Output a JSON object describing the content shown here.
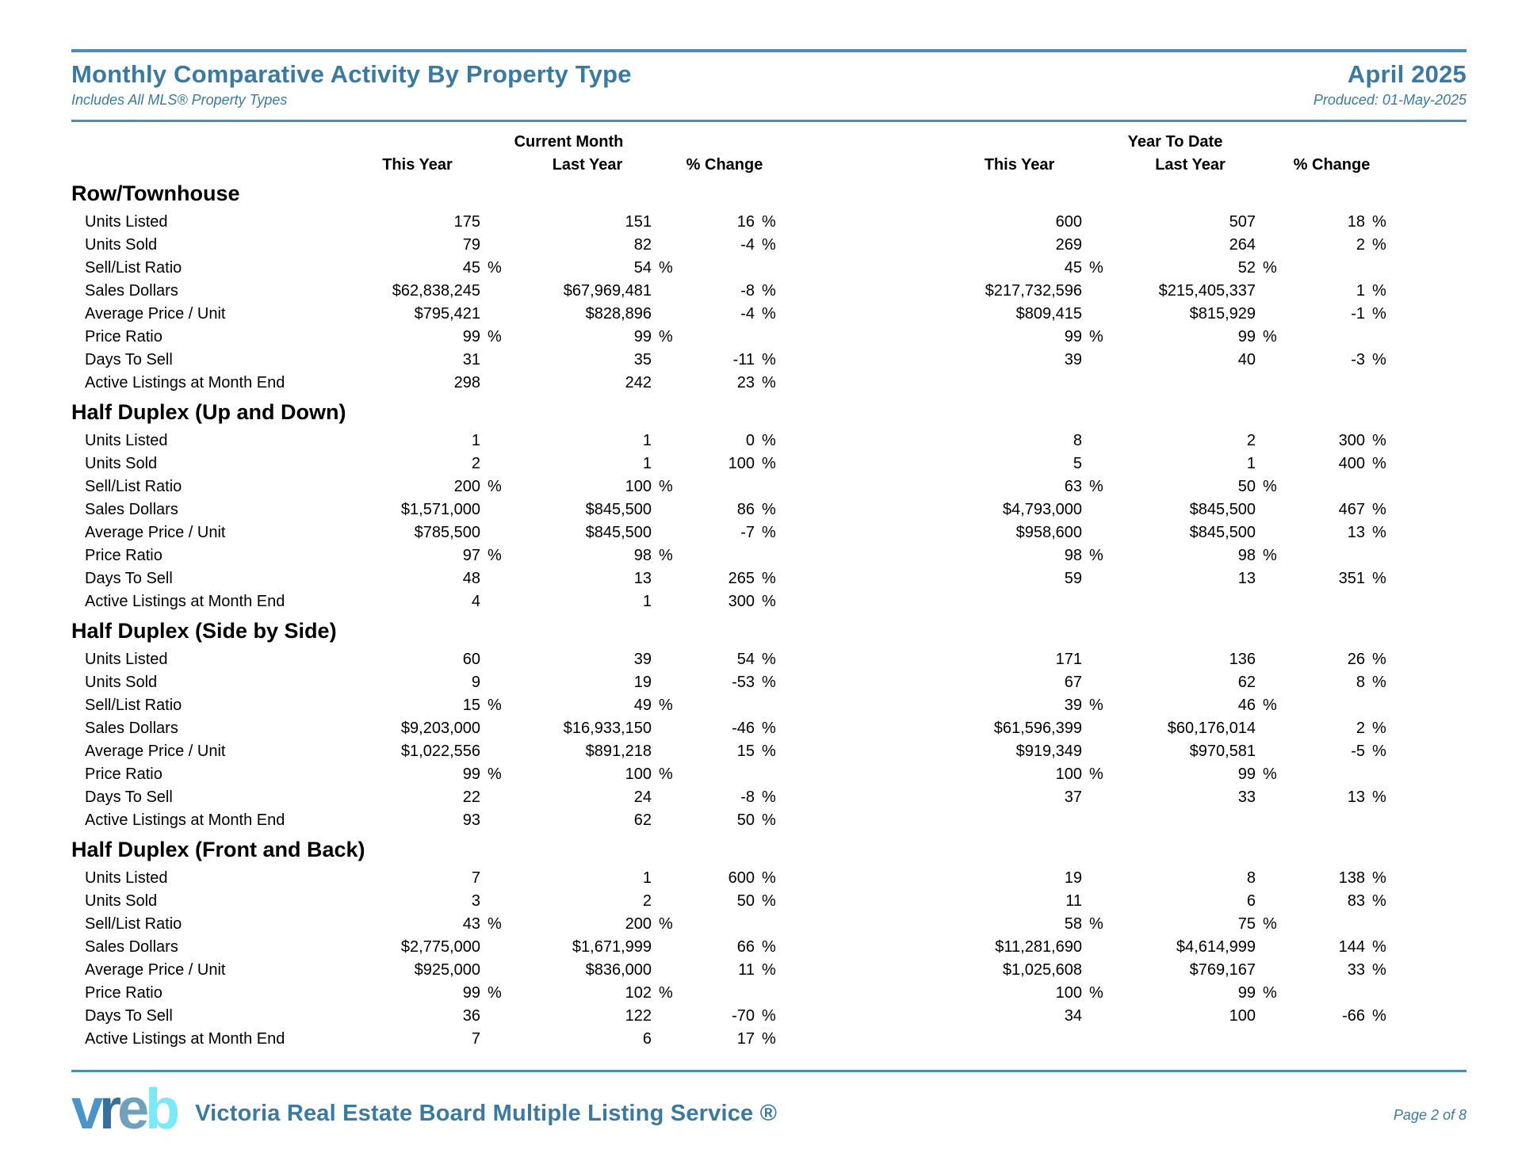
{
  "header": {
    "title": "Monthly Comparative Activity By Property Type",
    "subtitle": "Includes All MLS® Property Types",
    "period": "April 2025",
    "produced": "Produced: 01-May-2025"
  },
  "table": {
    "group_headers": [
      "Current Month",
      "Year To Date"
    ],
    "column_headers": [
      "This Year",
      "Last Year",
      "% Change"
    ],
    "row_labels": [
      "Units Listed",
      "Units Sold",
      "Sell/List Ratio",
      "Sales Dollars",
      "Average Price / Unit",
      "Price Ratio",
      "Days To Sell",
      "Active Listings at Month End"
    ],
    "sections": [
      {
        "name": "Row/Townhouse",
        "rows": [
          [
            "175",
            "151",
            "16 %",
            "600",
            "507",
            "18 %"
          ],
          [
            "79",
            "82",
            "-4 %",
            "269",
            "264",
            "2 %"
          ],
          [
            "45 %",
            "54 %",
            "",
            "45 %",
            "52 %",
            ""
          ],
          [
            "$62,838,245",
            "$67,969,481",
            "-8 %",
            "$217,732,596",
            "$215,405,337",
            "1 %"
          ],
          [
            "$795,421",
            "$828,896",
            "-4 %",
            "$809,415",
            "$815,929",
            "-1 %"
          ],
          [
            "99 %",
            "99 %",
            "",
            "99 %",
            "99 %",
            ""
          ],
          [
            "31",
            "35",
            "-11 %",
            "39",
            "40",
            "-3 %"
          ],
          [
            "298",
            "242",
            "23 %",
            "",
            "",
            ""
          ]
        ]
      },
      {
        "name": "Half Duplex (Up and Down)",
        "rows": [
          [
            "1",
            "1",
            "0 %",
            "8",
            "2",
            "300 %"
          ],
          [
            "2",
            "1",
            "100 %",
            "5",
            "1",
            "400 %"
          ],
          [
            "200 %",
            "100 %",
            "",
            "63 %",
            "50 %",
            ""
          ],
          [
            "$1,571,000",
            "$845,500",
            "86 %",
            "$4,793,000",
            "$845,500",
            "467 %"
          ],
          [
            "$785,500",
            "$845,500",
            "-7 %",
            "$958,600",
            "$845,500",
            "13 %"
          ],
          [
            "97 %",
            "98 %",
            "",
            "98 %",
            "98 %",
            ""
          ],
          [
            "48",
            "13",
            "265 %",
            "59",
            "13",
            "351 %"
          ],
          [
            "4",
            "1",
            "300 %",
            "",
            "",
            ""
          ]
        ]
      },
      {
        "name": "Half Duplex (Side by Side)",
        "rows": [
          [
            "60",
            "39",
            "54 %",
            "171",
            "136",
            "26 %"
          ],
          [
            "9",
            "19",
            "-53 %",
            "67",
            "62",
            "8 %"
          ],
          [
            "15 %",
            "49 %",
            "",
            "39 %",
            "46 %",
            ""
          ],
          [
            "$9,203,000",
            "$16,933,150",
            "-46 %",
            "$61,596,399",
            "$60,176,014",
            "2 %"
          ],
          [
            "$1,022,556",
            "$891,218",
            "15 %",
            "$919,349",
            "$970,581",
            "-5 %"
          ],
          [
            "99 %",
            "100 %",
            "",
            "100 %",
            "99 %",
            ""
          ],
          [
            "22",
            "24",
            "-8 %",
            "37",
            "33",
            "13 %"
          ],
          [
            "93",
            "62",
            "50 %",
            "",
            "",
            ""
          ]
        ]
      },
      {
        "name": "Half Duplex (Front and Back)",
        "rows": [
          [
            "7",
            "1",
            "600 %",
            "19",
            "8",
            "138 %"
          ],
          [
            "3",
            "2",
            "50 %",
            "11",
            "6",
            "83 %"
          ],
          [
            "43 %",
            "200 %",
            "",
            "58 %",
            "75 %",
            ""
          ],
          [
            "$2,775,000",
            "$1,671,999",
            "66 %",
            "$11,281,690",
            "$4,614,999",
            "144 %"
          ],
          [
            "$925,000",
            "$836,000",
            "11 %",
            "$1,025,608",
            "$769,167",
            "33 %"
          ],
          [
            "99 %",
            "102 %",
            "",
            "100 %",
            "99 %",
            ""
          ],
          [
            "36",
            "122",
            "-70 %",
            "34",
            "100",
            "-66 %"
          ],
          [
            "7",
            "6",
            "17 %",
            "",
            "",
            ""
          ]
        ]
      }
    ]
  },
  "footer": {
    "logo_letters": [
      {
        "char": "v",
        "color": "#4a94c9"
      },
      {
        "char": "r",
        "color": "#35719c"
      },
      {
        "char": "e",
        "color": "#6fa0bc"
      },
      {
        "char": "b",
        "color": "#7de9f8"
      }
    ],
    "brand": "Victoria Real Estate Board Multiple Listing Service ®",
    "page": "Page 2 of 8"
  },
  "colors": {
    "accent_text": "#3a7aa0",
    "rule": "#4a8db5",
    "body_text": "#000000"
  }
}
